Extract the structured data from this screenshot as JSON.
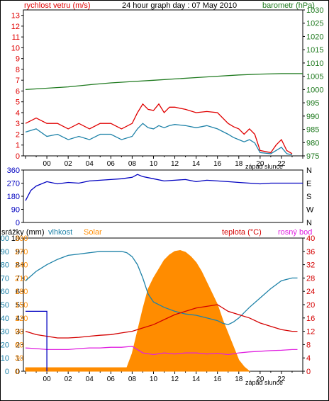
{
  "header": {
    "left_label": "rychlost vetru (m/s)",
    "title": "24 hour graph day : 07 May 2010",
    "right_label": "barometr (hPa)"
  },
  "panels": {
    "wind": {
      "left_ticks": [
        0,
        1,
        2,
        3,
        4,
        5,
        6,
        7,
        8,
        9,
        10,
        11,
        12,
        13
      ],
      "right_ticks": [
        975,
        980,
        985,
        990,
        995,
        1000,
        1005,
        1010,
        1015,
        1020,
        1025,
        1030
      ],
      "x_ticks": [
        "00",
        "02",
        "04",
        "06",
        "08",
        "10",
        "12",
        "14",
        "16",
        "18",
        "20",
        "22"
      ],
      "sunset_label": "západ slunce"
    },
    "direction": {
      "left_ticks": [
        0,
        90,
        180,
        270,
        360
      ],
      "right_labels": [
        "N",
        "W",
        "S",
        "E",
        "N"
      ]
    },
    "weather": {
      "labels": {
        "rain": "srážky (mm)",
        "humidity": "vlhkost",
        "solar": "Solar",
        "temp": "teplota (°C)",
        "dew": "rosný bod"
      },
      "rain_ticks": [
        0,
        1,
        2,
        3,
        4,
        5,
        6,
        7,
        8,
        9,
        10
      ],
      "humidity_ticks": [
        0,
        10,
        20,
        30,
        40,
        50,
        60,
        70,
        80,
        90,
        100
      ],
      "solar_ticks": [
        0,
        30,
        60,
        90,
        120,
        150,
        180,
        210,
        240,
        270,
        300
      ],
      "temp_ticks": [
        0,
        4,
        8,
        12,
        16,
        20,
        24,
        28,
        32,
        36,
        40
      ],
      "x_ticks": [
        "00",
        "02",
        "04",
        "06",
        "08",
        "10",
        "12",
        "14",
        "16",
        "18",
        "20",
        "22"
      ],
      "sunset_label": "západ slunce"
    }
  },
  "chart_data": [
    {
      "type": "line",
      "x_unit": "hour",
      "xlim": [
        -2.2,
        24
      ],
      "ylim_left": [
        0,
        13.5
      ],
      "ylim_right": [
        975,
        1030
      ],
      "series": [
        {
          "axis": "left",
          "color": "#e00000",
          "x": [
            -2,
            -1,
            0,
            1,
            2,
            3,
            4,
            5,
            6,
            7,
            8,
            8.5,
            9,
            9.5,
            10,
            10.5,
            11,
            11.5,
            12,
            13,
            14,
            15,
            16,
            17,
            17.5,
            18,
            18.5,
            19,
            19.5,
            20,
            21,
            21.5,
            22,
            22.5,
            23
          ],
          "y": [
            3,
            3.5,
            3,
            3,
            2.5,
            3,
            2.5,
            3,
            3,
            2.5,
            3,
            4,
            4.8,
            4.3,
            4.2,
            4.8,
            4,
            4.5,
            4.5,
            4.3,
            4,
            4.1,
            4,
            3,
            2.7,
            2.5,
            2,
            2.5,
            2,
            0.5,
            0.3,
            1,
            1.5,
            0.5,
            0.2
          ]
        },
        {
          "axis": "left",
          "color": "#1e82a8",
          "x": [
            -2,
            -1,
            0,
            1,
            2,
            3,
            4,
            5,
            6,
            7,
            8,
            8.5,
            9,
            9.5,
            10,
            10.5,
            11,
            11.5,
            12,
            13,
            14,
            15,
            16,
            17,
            17.5,
            18,
            18.5,
            19,
            19.5,
            20,
            21,
            21.5,
            22,
            22.5,
            23
          ],
          "y": [
            2.2,
            2.5,
            1.8,
            2,
            1.5,
            1.8,
            1.5,
            2,
            2,
            1.5,
            1.8,
            2.5,
            3,
            2.6,
            2.5,
            2.8,
            2.6,
            2.8,
            2.9,
            2.8,
            2.6,
            2.8,
            2.5,
            2,
            1.7,
            1.5,
            1.3,
            1.5,
            1.2,
            0.3,
            0.2,
            0.5,
            0.8,
            0.2,
            0.1
          ]
        },
        {
          "axis": "right",
          "color": "#1f7a1f",
          "x": [
            -2,
            0,
            2,
            4,
            6,
            8,
            10,
            12,
            14,
            16,
            18,
            20,
            22,
            24
          ],
          "y": [
            1000,
            1000.5,
            1001,
            1001.8,
            1002.5,
            1003,
            1003.5,
            1004,
            1004.5,
            1005,
            1005.5,
            1005.8,
            1006,
            1006
          ]
        }
      ]
    },
    {
      "type": "line",
      "x_unit": "hour",
      "xlim": [
        -2.2,
        24
      ],
      "ylim": [
        0,
        360
      ],
      "series": [
        {
          "color": "#0000c0",
          "x": [
            -2,
            -1.5,
            -1,
            0,
            1,
            2,
            3,
            4,
            5,
            6,
            7,
            8,
            8.5,
            9,
            10,
            11,
            12,
            13,
            14,
            15,
            16,
            17,
            18,
            19,
            20,
            21,
            22,
            23,
            24
          ],
          "y": [
            150,
            220,
            250,
            280,
            265,
            275,
            270,
            285,
            290,
            295,
            300,
            310,
            330,
            315,
            300,
            285,
            290,
            295,
            280,
            290,
            285,
            280,
            275,
            270,
            265,
            270,
            270,
            270,
            270
          ]
        }
      ]
    },
    {
      "type": "line",
      "x_unit": "hour",
      "xlim": [
        -2.2,
        24
      ],
      "ylim_rain": [
        0,
        10
      ],
      "ylim_humidity": [
        0,
        100
      ],
      "ylim_solar": [
        0,
        300
      ],
      "ylim_temp": [
        0,
        40
      ],
      "series": [
        {
          "axis": "solar",
          "color": "#ff8c00",
          "kind": "area",
          "x": [
            -2,
            7.5,
            8,
            8.5,
            9,
            9.5,
            10,
            10.5,
            11,
            11.5,
            12,
            12.5,
            13,
            13.5,
            14,
            14.5,
            15,
            15.5,
            16,
            16.5,
            17,
            17.5,
            18,
            18.5,
            19
          ],
          "y": [
            8,
            8,
            40,
            90,
            140,
            185,
            210,
            230,
            250,
            262,
            270,
            272,
            268,
            258,
            245,
            225,
            200,
            175,
            150,
            115,
            85,
            55,
            25,
            10,
            0
          ]
        },
        {
          "axis": "humidity",
          "color": "#1e82a8",
          "x": [
            -2,
            -1,
            0,
            1,
            2,
            3,
            4,
            5,
            6,
            7,
            7.5,
            8,
            8.5,
            9,
            9.5,
            10,
            11,
            12,
            13,
            14,
            15,
            16,
            16.5,
            17,
            17.5,
            18,
            19,
            20,
            21,
            22,
            23,
            23.5
          ],
          "y": [
            68,
            75,
            80,
            84,
            87,
            88,
            89,
            90,
            90,
            90,
            89,
            86,
            80,
            70,
            58,
            52,
            48,
            45,
            43,
            42,
            40,
            38,
            36,
            35,
            37,
            40,
            48,
            55,
            62,
            68,
            70,
            70
          ]
        },
        {
          "axis": "temp",
          "color": "#d40000",
          "x": [
            -2,
            -1,
            0,
            1,
            2,
            3,
            4,
            5,
            6,
            7,
            8,
            9,
            10,
            11,
            12,
            13,
            14,
            15,
            16,
            17,
            18,
            19,
            20,
            21,
            22,
            23,
            23.5
          ],
          "y": [
            12,
            11,
            10.5,
            10,
            10,
            10.2,
            10.5,
            10.8,
            11,
            11.5,
            12,
            13,
            14,
            15.5,
            17,
            18,
            19,
            19.5,
            20,
            18,
            17,
            16,
            14.5,
            13.5,
            12.5,
            12,
            12
          ]
        },
        {
          "axis": "temp",
          "color": "#e020e0",
          "x": [
            -2,
            -1,
            0,
            1,
            2,
            3,
            4,
            5,
            6,
            7,
            8,
            9,
            10,
            11,
            12,
            13,
            14,
            15,
            16,
            17,
            18,
            19,
            20,
            21,
            22,
            23,
            23.5
          ],
          "y": [
            7,
            6.8,
            6.5,
            6.5,
            6.5,
            6.8,
            7,
            7,
            7.2,
            7.2,
            7.5,
            5.5,
            5,
            5.5,
            5.2,
            5.5,
            5.5,
            5.2,
            5.4,
            5,
            5.5,
            5.8,
            6,
            6.2,
            6.3,
            6.5,
            6.5
          ]
        },
        {
          "axis": "rain",
          "color": "#0000c0",
          "kind": "step",
          "x": [
            -2,
            0,
            0
          ],
          "y": [
            4.5,
            4.5,
            0
          ]
        }
      ]
    }
  ]
}
